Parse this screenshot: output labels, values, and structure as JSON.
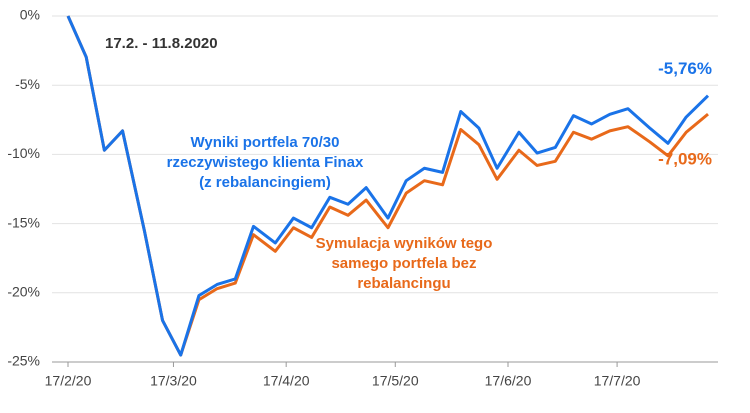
{
  "chart_data": {
    "type": "line",
    "x": [
      "17/2/20",
      "22/2/20",
      "27/2/20",
      "3/3/20",
      "9/3/20",
      "14/3/20",
      "19/3/20",
      "24/3/20",
      "29/3/20",
      "3/4/20",
      "8/4/20",
      "14/4/20",
      "19/4/20",
      "24/4/20",
      "29/4/20",
      "4/5/20",
      "9/5/20",
      "15/5/20",
      "20/5/20",
      "25/5/20",
      "30/5/20",
      "4/6/20",
      "9/6/20",
      "14/6/20",
      "20/6/20",
      "25/6/20",
      "30/6/20",
      "5/7/20",
      "10/7/20",
      "15/7/20",
      "20/7/20",
      "26/7/20",
      "31/7/20",
      "5/8/20",
      "11/8/20"
    ],
    "xlim": [
      "17/2/20",
      "11/8/20"
    ],
    "xticks": [
      "17/2/20",
      "17/3/20",
      "17/4/20",
      "17/5/20",
      "17/6/20",
      "17/7/20"
    ],
    "ylim": [
      -25,
      0
    ],
    "yticks": [
      {
        "value": 0,
        "label": "0%"
      },
      {
        "value": -5,
        "label": "-5%"
      },
      {
        "value": -10,
        "label": "-10%"
      },
      {
        "value": -15,
        "label": "-15%"
      },
      {
        "value": -20,
        "label": "-20%"
      },
      {
        "value": -25,
        "label": "-25%"
      }
    ],
    "grid": true,
    "series": [
      {
        "name": "Wyniki portfela 70/30 rzeczywistego klienta Finax (z rebalancingiem)",
        "color": "#1a73e8",
        "values": [
          0,
          -2.96,
          -9.7,
          -8.3,
          -15.5,
          -22,
          -24.5,
          -20.2,
          -19.4,
          -19,
          -15.2,
          -16.4,
          -14.6,
          -15.3,
          -13.1,
          -13.6,
          -12.4,
          -14.6,
          -11.9,
          -11,
          -11.3,
          -6.9,
          -8.1,
          -11,
          -8.4,
          -9.9,
          -9.5,
          -7.2,
          -7.8,
          -7.1,
          -6.7,
          -8.1,
          -9.2,
          -7.3,
          -5.76
        ],
        "value_labels": [
          null,
          null,
          null,
          null,
          null,
          null,
          null,
          null,
          null,
          null,
          null,
          null,
          null,
          null,
          null,
          null,
          null,
          null,
          null,
          null,
          null,
          null,
          null,
          null,
          null,
          null,
          null,
          null,
          null,
          null,
          null,
          null,
          null,
          null,
          "-5,76%"
        ]
      },
      {
        "name": "Symulacja wyników tego samego portfela bez rebalancingu",
        "color": "#e8691a",
        "values": [
          0,
          -2.96,
          -9.7,
          -8.3,
          -15.5,
          -22,
          -24.5,
          -20.5,
          -19.7,
          -19.3,
          -15.8,
          -17,
          -15.3,
          -16,
          -13.8,
          -14.4,
          -13.3,
          -15.3,
          -12.8,
          -11.9,
          -12.2,
          -8.2,
          -9.3,
          -11.8,
          -9.7,
          -10.8,
          -10.5,
          -8.4,
          -8.9,
          -8.3,
          -8,
          -9.1,
          -10.1,
          -8.4,
          -7.09
        ],
        "value_labels": [
          null,
          null,
          null,
          null,
          null,
          null,
          null,
          null,
          null,
          null,
          null,
          null,
          null,
          null,
          null,
          null,
          null,
          null,
          null,
          null,
          null,
          null,
          null,
          null,
          null,
          null,
          null,
          null,
          null,
          null,
          null,
          null,
          null,
          null,
          "-7,09%"
        ]
      }
    ],
    "annotations": {
      "period": "17.2. - 11.8.2020",
      "blue_note": [
        "Wyniki portfela 70/30",
        "rzeczywistego klienta Finax",
        "(z rebalancingiem)"
      ],
      "orange_note": [
        "Symulacja wyników tego",
        "samego portfela bez",
        "rebalancingu"
      ]
    }
  }
}
